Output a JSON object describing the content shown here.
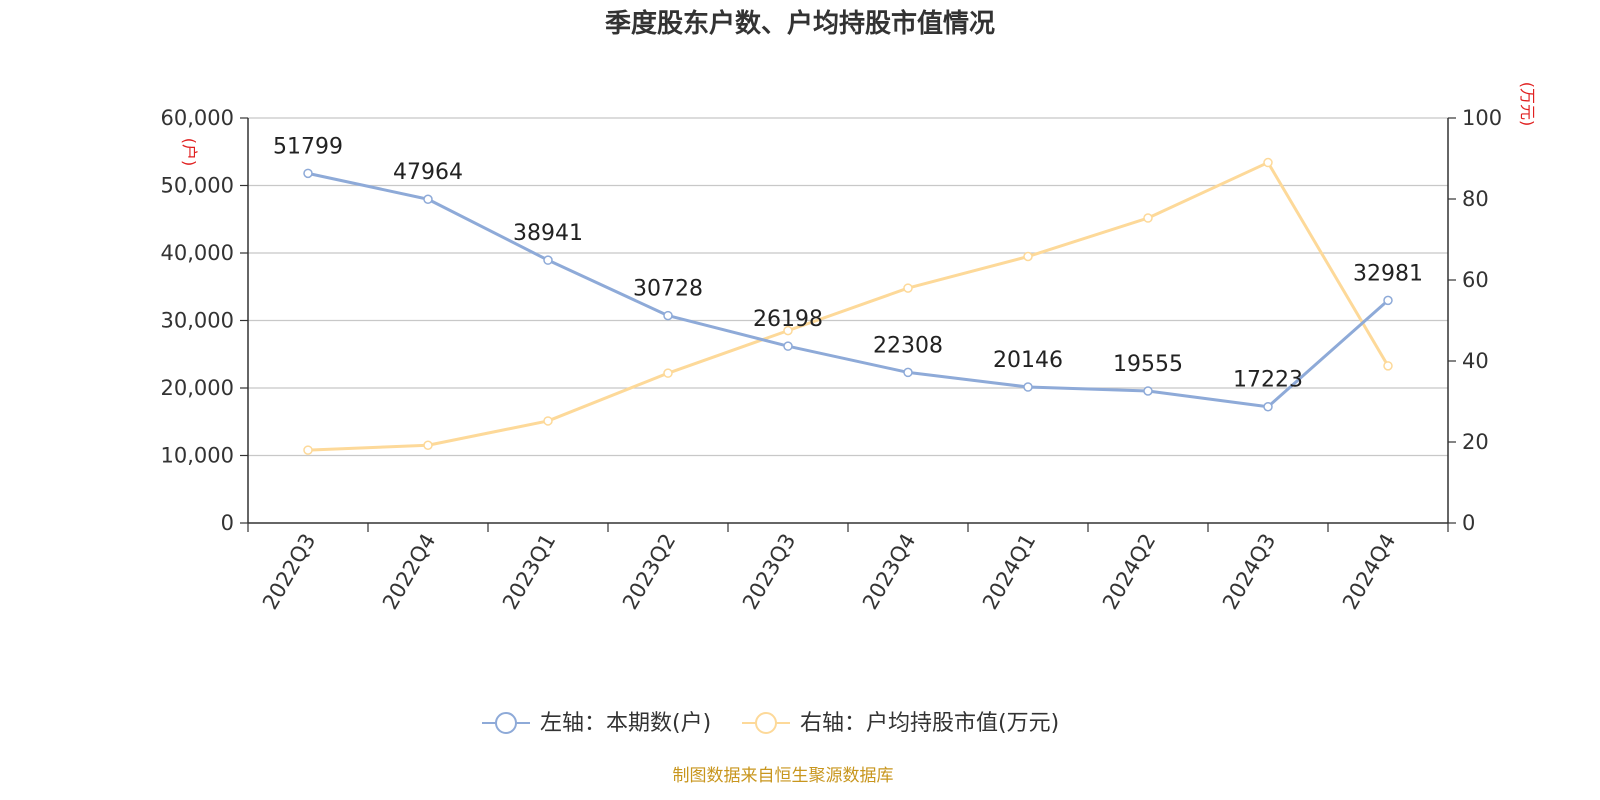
{
  "chart_data": {
    "type": "line",
    "title": "季度股东户数、户均持股市值情况",
    "categories": [
      "2022Q3",
      "2022Q4",
      "2023Q1",
      "2023Q2",
      "2023Q3",
      "2023Q4",
      "2024Q1",
      "2024Q2",
      "2024Q3",
      "2024Q4"
    ],
    "series": [
      {
        "name": "左轴：本期数(户)",
        "axis": "left",
        "color": "#8eaad8",
        "values": [
          51799,
          47964,
          38941,
          30728,
          26198,
          22308,
          20146,
          19555,
          17223,
          32981
        ],
        "labels": [
          "51799",
          "47964",
          "38941",
          "30728",
          "26198",
          "22308",
          "20146",
          "19555",
          "17223",
          "32981"
        ]
      },
      {
        "name": "右轴：户均持股市值(万元)",
        "axis": "right",
        "color": "#fdd999",
        "values": [
          18,
          19.2,
          25.2,
          37,
          47.5,
          58,
          65.8,
          75.3,
          89,
          38.8
        ]
      }
    ],
    "left_axis": {
      "unit": "(户)",
      "range": [
        0,
        60000
      ],
      "ticks": [
        0,
        10000,
        20000,
        30000,
        40000,
        50000,
        60000
      ],
      "tick_labels": [
        "0",
        "10,000",
        "20,000",
        "30,000",
        "40,000",
        "50,000",
        "60,000"
      ]
    },
    "right_axis": {
      "unit": "(万元)",
      "range": [
        0,
        100
      ],
      "ticks": [
        0,
        20,
        40,
        60,
        80,
        100
      ],
      "tick_labels": [
        "0",
        "20",
        "40",
        "60",
        "80",
        "100"
      ]
    },
    "grid": true,
    "legend_position": "bottom",
    "source": "制图数据来自恒生聚源数据库"
  }
}
